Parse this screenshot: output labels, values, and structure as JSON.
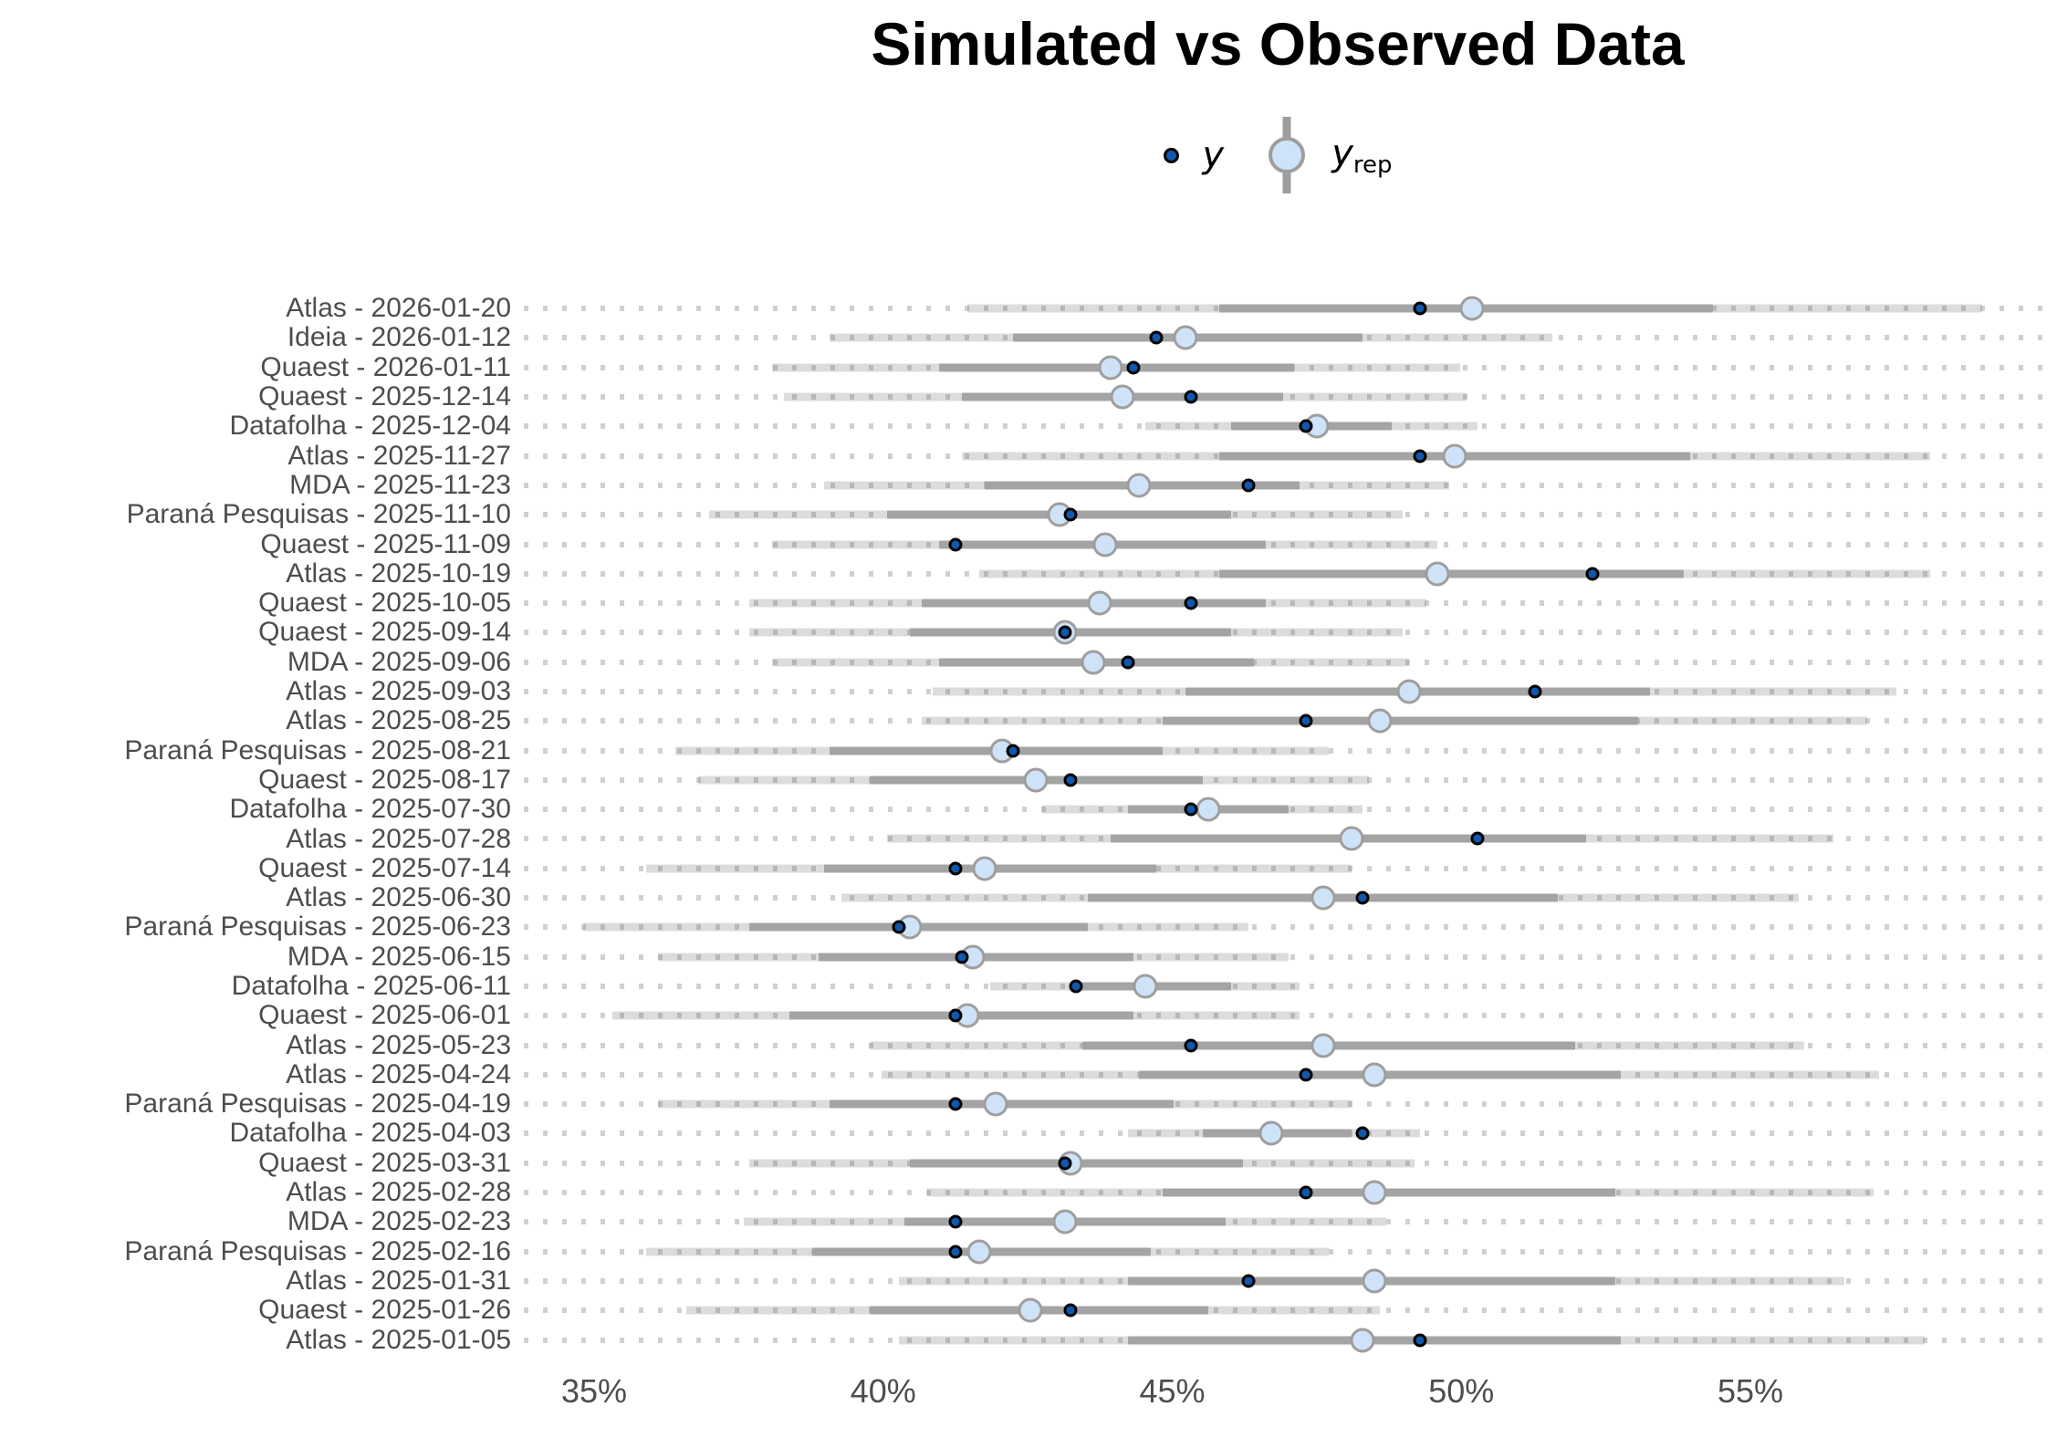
{
  "title": "Simulated vs Observed Data",
  "legend": {
    "y_label": "y",
    "yrep_base": "y",
    "yrep_sub": "rep"
  },
  "colors": {
    "y_point_fill": "#1158ad",
    "y_point_stroke": "#000000",
    "yrep_fill": "#cfe3f8",
    "yrep_stroke": "#9e9e9e",
    "inner_interval": "#a4a4a4",
    "outer_interval": "#dcdcdc",
    "grid_dots": "#cdcdcd",
    "label_text": "#4d4d4d"
  },
  "chart_data": {
    "type": "interval-dot",
    "title": "Simulated vs Observed Data",
    "xlabel": "",
    "ylabel": "",
    "x_unit": "percent",
    "xlim": [
      33.5,
      60.4
    ],
    "x_ticks": [
      35,
      40,
      45,
      50,
      55
    ],
    "x_tick_labels": [
      "35%",
      "40%",
      "45%",
      "50%",
      "55%"
    ],
    "grid": "dotted-horizontal",
    "legend_position": "top-center",
    "series_meaning": {
      "y": "observed data point (dark blue dot)",
      "yrep": "simulated replication median (light blue circle)",
      "inner": "50% interval of yrep (dark gray bar)",
      "outer": "90% interval of yrep (light gray bar)"
    },
    "rows": [
      {
        "label": "Atlas - 2026-01-20",
        "outer": [
          41.3,
          59.0
        ],
        "inner": [
          45.7,
          54.3
        ],
        "yrep": 50.1,
        "y": 49.2
      },
      {
        "label": "Ideia - 2026-01-12",
        "outer": [
          38.9,
          51.5
        ],
        "inner": [
          42.1,
          48.2
        ],
        "yrep": 45.1,
        "y": 44.6
      },
      {
        "label": "Quaest - 2026-01-11",
        "outer": [
          37.9,
          49.9
        ],
        "inner": [
          40.8,
          47.0
        ],
        "yrep": 43.8,
        "y": 44.2
      },
      {
        "label": "Quaest - 2025-12-14",
        "outer": [
          38.1,
          50.0
        ],
        "inner": [
          41.2,
          46.8
        ],
        "yrep": 44.0,
        "y": 45.2
      },
      {
        "label": "Datafolha - 2025-12-04",
        "outer": [
          44.4,
          50.2
        ],
        "inner": [
          45.9,
          48.7
        ],
        "yrep": 47.4,
        "y": 47.2
      },
      {
        "label": "Atlas - 2025-11-27",
        "outer": [
          41.2,
          58.1
        ],
        "inner": [
          45.7,
          53.9
        ],
        "yrep": 49.8,
        "y": 49.2
      },
      {
        "label": "MDA - 2025-11-23",
        "outer": [
          38.8,
          49.7
        ],
        "inner": [
          41.6,
          47.1
        ],
        "yrep": 44.3,
        "y": 46.2
      },
      {
        "label": "Paraná Pesquisas - 2025-11-10",
        "outer": [
          36.8,
          48.9
        ],
        "inner": [
          39.9,
          45.9
        ],
        "yrep": 42.9,
        "y": 43.1
      },
      {
        "label": "Quaest - 2025-11-09",
        "outer": [
          37.9,
          49.5
        ],
        "inner": [
          40.8,
          46.5
        ],
        "yrep": 43.7,
        "y": 41.1
      },
      {
        "label": "Atlas - 2025-10-19",
        "outer": [
          41.5,
          58.1
        ],
        "inner": [
          45.7,
          53.8
        ],
        "yrep": 49.5,
        "y": 52.2
      },
      {
        "label": "Quaest - 2025-10-05",
        "outer": [
          37.5,
          49.3
        ],
        "inner": [
          40.5,
          46.5
        ],
        "yrep": 43.6,
        "y": 45.2
      },
      {
        "label": "Quaest - 2025-09-14",
        "outer": [
          37.5,
          48.9
        ],
        "inner": [
          40.3,
          45.9
        ],
        "yrep": 43.0,
        "y": 43.0
      },
      {
        "label": "MDA - 2025-09-06",
        "outer": [
          37.9,
          49.0
        ],
        "inner": [
          40.8,
          46.3
        ],
        "yrep": 43.5,
        "y": 44.1
      },
      {
        "label": "Atlas - 2025-09-03",
        "outer": [
          40.7,
          57.5
        ],
        "inner": [
          45.1,
          53.2
        ],
        "yrep": 49.0,
        "y": 51.2
      },
      {
        "label": "Atlas - 2025-08-25",
        "outer": [
          40.5,
          57.0
        ],
        "inner": [
          44.7,
          53.0
        ],
        "yrep": 48.5,
        "y": 47.2
      },
      {
        "label": "Paraná Pesquisas - 2025-08-21",
        "outer": [
          36.2,
          47.6
        ],
        "inner": [
          38.9,
          44.7
        ],
        "yrep": 41.9,
        "y": 42.1
      },
      {
        "label": "Quaest - 2025-08-17",
        "outer": [
          36.6,
          48.3
        ],
        "inner": [
          39.6,
          45.4
        ],
        "yrep": 42.5,
        "y": 43.1
      },
      {
        "label": "Datafolha - 2025-07-30",
        "outer": [
          42.6,
          48.2
        ],
        "inner": [
          44.1,
          46.9
        ],
        "yrep": 45.5,
        "y": 45.2
      },
      {
        "label": "Atlas - 2025-07-28",
        "outer": [
          39.9,
          56.4
        ],
        "inner": [
          43.8,
          52.1
        ],
        "yrep": 48.0,
        "y": 50.2
      },
      {
        "label": "Quaest - 2025-07-14",
        "outer": [
          35.7,
          48.0
        ],
        "inner": [
          38.8,
          44.6
        ],
        "yrep": 41.6,
        "y": 41.1
      },
      {
        "label": "Atlas - 2025-06-30",
        "outer": [
          39.1,
          55.8
        ],
        "inner": [
          43.4,
          51.6
        ],
        "yrep": 47.5,
        "y": 48.2
      },
      {
        "label": "Paraná Pesquisas - 2025-06-23",
        "outer": [
          34.6,
          46.2
        ],
        "inner": [
          37.5,
          43.4
        ],
        "yrep": 40.3,
        "y": 40.1
      },
      {
        "label": "MDA - 2025-06-15",
        "outer": [
          35.9,
          46.9
        ],
        "inner": [
          38.7,
          44.2
        ],
        "yrep": 41.4,
        "y": 41.2
      },
      {
        "label": "Datafolha - 2025-06-11",
        "outer": [
          41.7,
          47.1
        ],
        "inner": [
          43.1,
          45.9
        ],
        "yrep": 44.4,
        "y": 43.2
      },
      {
        "label": "Quaest - 2025-06-01",
        "outer": [
          35.1,
          47.1
        ],
        "inner": [
          38.2,
          44.2
        ],
        "yrep": 41.3,
        "y": 41.1
      },
      {
        "label": "Atlas - 2025-05-23",
        "outer": [
          39.6,
          55.9
        ],
        "inner": [
          43.3,
          51.9
        ],
        "yrep": 47.5,
        "y": 45.2
      },
      {
        "label": "Atlas - 2025-04-24",
        "outer": [
          39.8,
          57.2
        ],
        "inner": [
          44.3,
          52.7
        ],
        "yrep": 48.4,
        "y": 47.2
      },
      {
        "label": "Paraná Pesquisas - 2025-04-19",
        "outer": [
          35.9,
          48.0
        ],
        "inner": [
          38.9,
          44.9
        ],
        "yrep": 41.8,
        "y": 41.1
      },
      {
        "label": "Datafolha - 2025-04-03",
        "outer": [
          44.1,
          49.2
        ],
        "inner": [
          45.4,
          48.0
        ],
        "yrep": 46.6,
        "y": 48.2
      },
      {
        "label": "Quaest - 2025-03-31",
        "outer": [
          37.5,
          49.1
        ],
        "inner": [
          40.3,
          46.1
        ],
        "yrep": 43.1,
        "y": 43.0
      },
      {
        "label": "Atlas - 2025-02-28",
        "outer": [
          40.6,
          57.1
        ],
        "inner": [
          44.7,
          52.6
        ],
        "yrep": 48.4,
        "y": 47.2
      },
      {
        "label": "MDA - 2025-02-23",
        "outer": [
          37.4,
          48.6
        ],
        "inner": [
          40.2,
          45.8
        ],
        "yrep": 43.0,
        "y": 41.1
      },
      {
        "label": "Paraná Pesquisas - 2025-02-16",
        "outer": [
          35.7,
          47.6
        ],
        "inner": [
          38.6,
          44.5
        ],
        "yrep": 41.5,
        "y": 41.1
      },
      {
        "label": "Atlas - 2025-01-31",
        "outer": [
          40.1,
          56.6
        ],
        "inner": [
          44.1,
          52.6
        ],
        "yrep": 48.4,
        "y": 46.2
      },
      {
        "label": "Quaest - 2025-01-26",
        "outer": [
          36.4,
          48.5
        ],
        "inner": [
          39.6,
          45.5
        ],
        "yrep": 42.4,
        "y": 43.1
      },
      {
        "label": "Atlas - 2025-01-05",
        "outer": [
          40.1,
          58.0
        ],
        "inner": [
          44.1,
          52.7
        ],
        "yrep": 48.2,
        "y": 49.2
      }
    ]
  }
}
